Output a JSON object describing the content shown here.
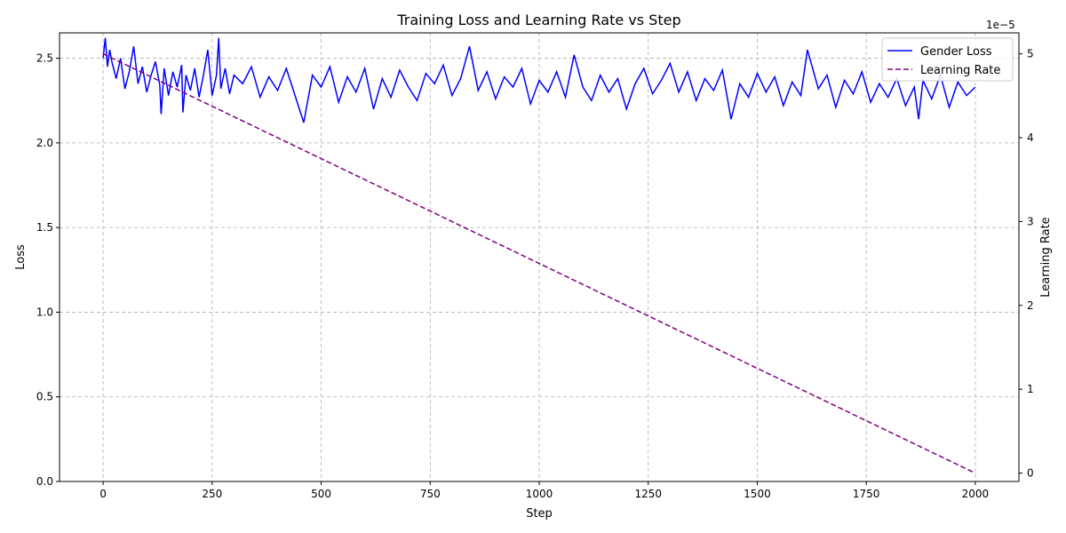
{
  "chart_data": {
    "type": "line",
    "title": "Training Loss and Learning Rate vs Step",
    "xlabel": "Step",
    "ylabel": "Loss",
    "y2label": "Learning Rate",
    "y2_offset_text": "1e−5",
    "xlim": [
      -100,
      2100
    ],
    "ylim": [
      0.0,
      2.65
    ],
    "y2lim": [
      -0.1,
      5.25
    ],
    "x_ticks": [
      0,
      250,
      500,
      750,
      1000,
      1250,
      1500,
      1750,
      2000
    ],
    "y_ticks": [
      0.0,
      0.5,
      1.0,
      1.5,
      2.0,
      2.5
    ],
    "y_tick_labels": [
      "0.0",
      "0.5",
      "1.0",
      "1.5",
      "2.0",
      "2.5"
    ],
    "y2_ticks": [
      0,
      1,
      2,
      3,
      4,
      5
    ],
    "grid": true,
    "legend_position": "top-right",
    "series": [
      {
        "name": "Gender Loss",
        "axis": "left",
        "color": "#0000ff",
        "style": "solid",
        "x": [
          0,
          5,
          10,
          15,
          20,
          30,
          40,
          50,
          60,
          70,
          80,
          90,
          100,
          110,
          120,
          130,
          133,
          140,
          150,
          160,
          170,
          180,
          183,
          190,
          200,
          210,
          220,
          230,
          240,
          250,
          260,
          265,
          270,
          280,
          290,
          300,
          320,
          340,
          360,
          380,
          400,
          420,
          440,
          460,
          480,
          500,
          520,
          540,
          560,
          580,
          600,
          620,
          640,
          660,
          680,
          700,
          720,
          740,
          760,
          780,
          800,
          820,
          840,
          860,
          880,
          900,
          920,
          940,
          960,
          980,
          1000,
          1020,
          1040,
          1060,
          1080,
          1100,
          1120,
          1140,
          1160,
          1180,
          1200,
          1220,
          1240,
          1260,
          1280,
          1300,
          1320,
          1340,
          1360,
          1380,
          1400,
          1420,
          1440,
          1460,
          1480,
          1500,
          1520,
          1540,
          1560,
          1580,
          1600,
          1615,
          1640,
          1660,
          1680,
          1700,
          1720,
          1740,
          1760,
          1780,
          1800,
          1820,
          1840,
          1860,
          1870,
          1880,
          1900,
          1920,
          1940,
          1960,
          1980,
          2000
        ],
        "y": [
          2.5,
          2.62,
          2.45,
          2.55,
          2.48,
          2.38,
          2.5,
          2.32,
          2.42,
          2.57,
          2.35,
          2.45,
          2.3,
          2.4,
          2.48,
          2.34,
          2.17,
          2.44,
          2.28,
          2.42,
          2.33,
          2.46,
          2.18,
          2.4,
          2.31,
          2.44,
          2.27,
          2.4,
          2.55,
          2.28,
          2.4,
          2.62,
          2.32,
          2.44,
          2.29,
          2.4,
          2.35,
          2.45,
          2.27,
          2.39,
          2.31,
          2.44,
          2.28,
          2.12,
          2.4,
          2.33,
          2.45,
          2.24,
          2.39,
          2.3,
          2.44,
          2.2,
          2.38,
          2.27,
          2.43,
          2.33,
          2.25,
          2.41,
          2.35,
          2.46,
          2.28,
          2.38,
          2.57,
          2.31,
          2.42,
          2.26,
          2.39,
          2.33,
          2.44,
          2.23,
          2.37,
          2.3,
          2.42,
          2.27,
          2.52,
          2.33,
          2.25,
          2.4,
          2.3,
          2.38,
          2.2,
          2.35,
          2.44,
          2.29,
          2.37,
          2.47,
          2.3,
          2.42,
          2.25,
          2.38,
          2.31,
          2.43,
          2.14,
          2.35,
          2.27,
          2.41,
          2.3,
          2.39,
          2.22,
          2.36,
          2.28,
          2.55,
          2.32,
          2.4,
          2.21,
          2.37,
          2.29,
          2.42,
          2.24,
          2.35,
          2.27,
          2.38,
          2.22,
          2.33,
          2.14,
          2.37,
          2.26,
          2.4,
          2.21,
          2.36,
          2.28,
          2.33
        ]
      },
      {
        "name": "Learning Rate",
        "axis": "right",
        "color": "#800080",
        "style": "dashed",
        "x": [
          0,
          2000
        ],
        "y": [
          5.0,
          0.0
        ]
      }
    ]
  }
}
